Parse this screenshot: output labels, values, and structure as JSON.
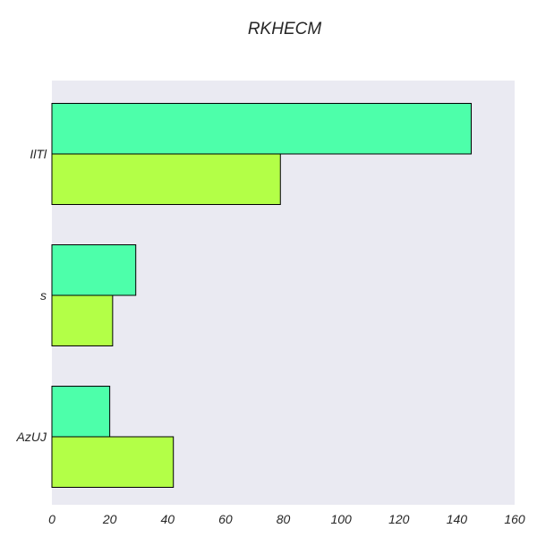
{
  "chart_data": {
    "type": "bar",
    "orientation": "horizontal",
    "title": "RKHECM",
    "xlabel": "",
    "ylabel": "",
    "categories": [
      "IlTl",
      "s",
      "AzUJ"
    ],
    "series": [
      {
        "values": [
          145,
          29,
          20
        ],
        "color": "#4dffaa"
      },
      {
        "values": [
          79,
          21,
          42
        ],
        "color": "#b3ff47"
      }
    ],
    "xlim": [
      0,
      160
    ],
    "xticks": [
      0,
      20,
      40,
      60,
      80,
      100,
      120,
      140,
      160
    ],
    "grid": false,
    "legend": "none",
    "colors": {
      "plot_background": "#eaeaf2",
      "bar_edge": "#000000",
      "text": "#262626"
    }
  }
}
